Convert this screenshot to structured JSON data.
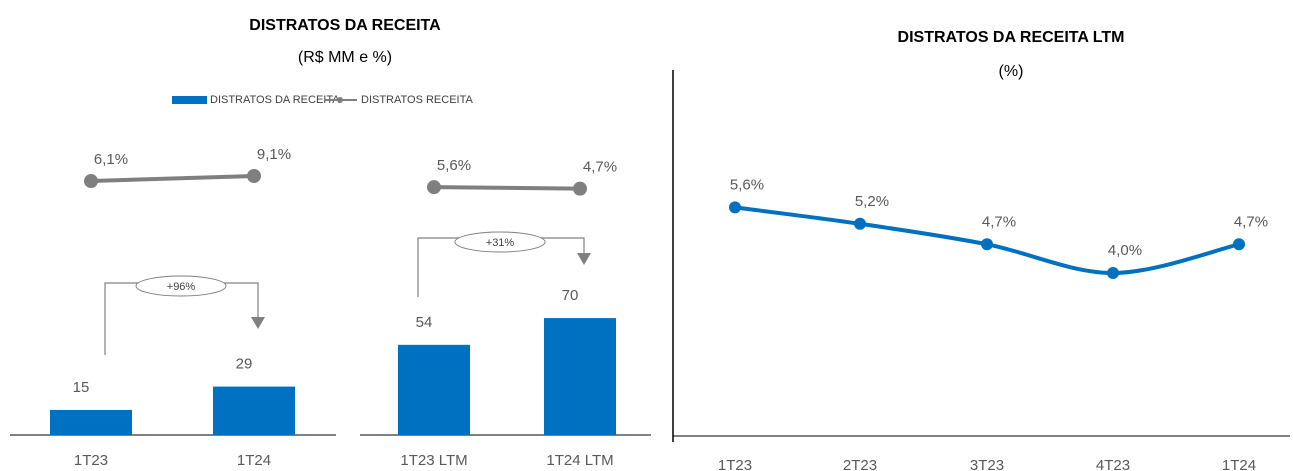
{
  "chart_data": [
    {
      "type": "bar_line",
      "title": "DISTRATOS DA RECEITA",
      "subtitle": "(R$ MM e %)",
      "categories": [
        "1T23",
        "1T24"
      ],
      "series": [
        {
          "name": "DISTRATOS DA RECEITA",
          "type": "bar",
          "color": "#0070c0",
          "values": [
            15,
            29
          ]
        },
        {
          "name": "DISTRATOS RECEITA",
          "type": "line",
          "color": "#7f7f7f",
          "values": [
            6.1,
            9.1
          ],
          "value_labels": [
            "6,1%",
            "9,1%"
          ]
        }
      ],
      "annotation": "+96%"
    },
    {
      "type": "bar_line",
      "categories": [
        "1T23 LTM",
        "1T24 LTM"
      ],
      "series": [
        {
          "type": "bar",
          "color": "#0070c0",
          "values": [
            54,
            70
          ]
        },
        {
          "type": "line",
          "color": "#7f7f7f",
          "values": [
            5.6,
            4.7
          ],
          "value_labels": [
            "5,6%",
            "4,7%"
          ]
        }
      ],
      "annotation": "+31%"
    },
    {
      "type": "line",
      "title": "DISTRATOS DA RECEITA LTM",
      "subtitle": "(%)",
      "categories": [
        "1T23",
        "2T23",
        "3T23",
        "4T23",
        "1T24"
      ],
      "color": "#0070c0",
      "values": [
        5.6,
        5.2,
        4.7,
        4.0,
        4.7
      ],
      "value_labels": [
        "5,6%",
        "5,2%",
        "4,7%",
        "4,0%",
        "4,7%"
      ]
    }
  ]
}
